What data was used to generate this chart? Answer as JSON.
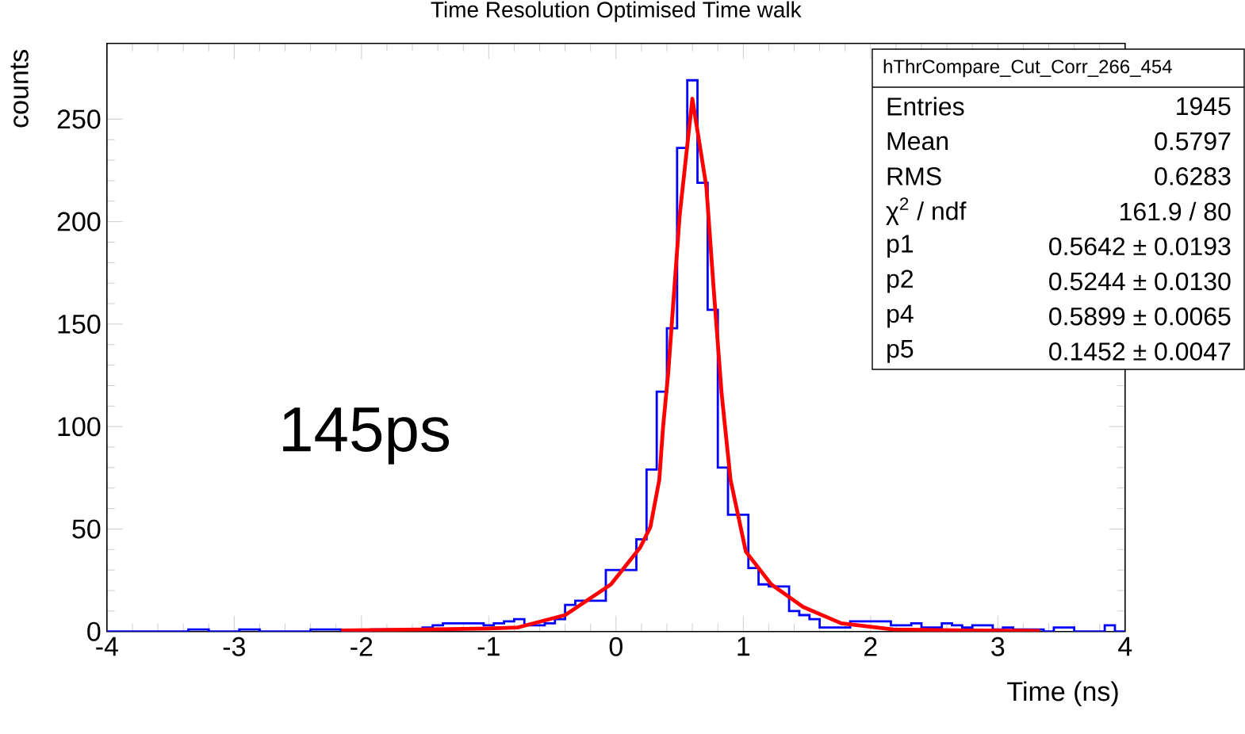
{
  "chart_data": {
    "type": "histogram",
    "title": "Time Resolution Optimised Time walk",
    "xlabel": "Time (ns)",
    "ylabel": "counts",
    "bins": [
      -4,
      -3.92,
      -3.84,
      -3.76,
      -3.68,
      -3.6,
      -3.52,
      -3.44,
      -3.36,
      -3.28,
      -3.2,
      -3.12,
      -3.04,
      -2.96,
      -2.88,
      -2.8,
      -2.72,
      -2.64,
      -2.56,
      -2.48,
      -2.4,
      -2.32,
      -2.24,
      -2.16,
      -2.08,
      -2,
      -1.92,
      -1.84,
      -1.76,
      -1.68,
      -1.6,
      -1.52,
      -1.44,
      -1.36,
      -1.28,
      -1.2,
      -1.12,
      -1.04,
      -0.96,
      -0.88,
      -0.8,
      -0.72,
      -0.64,
      -0.56,
      -0.48,
      -0.4,
      -0.32,
      -0.24,
      -0.16,
      -0.08,
      0,
      0.08,
      0.16,
      0.24,
      0.32,
      0.4,
      0.48,
      0.56,
      0.64,
      0.72,
      0.8,
      0.88,
      0.96,
      1.04,
      1.12,
      1.2,
      1.28,
      1.36,
      1.44,
      1.52,
      1.6,
      1.68,
      1.76,
      1.84,
      1.92,
      2,
      2.08,
      2.16,
      2.24,
      2.32,
      2.4,
      2.48,
      2.56,
      2.64,
      2.72,
      2.8,
      2.88,
      2.96,
      3.04,
      3.12,
      3.2,
      3.28,
      3.36,
      3.44,
      3.52,
      3.6,
      3.68,
      3.76,
      3.84,
      3.92,
      4
    ],
    "color": "#0000ff",
    "values": [
      0,
      0,
      0,
      0,
      0,
      0,
      0,
      0,
      1,
      1,
      0,
      0,
      0,
      1,
      1,
      0,
      0,
      0,
      0,
      0,
      1,
      1,
      1,
      0,
      0,
      0,
      1,
      1,
      1,
      1,
      1,
      2,
      3,
      4,
      4,
      4,
      4,
      3,
      4,
      5,
      6,
      3,
      3,
      4,
      6,
      13,
      15,
      15,
      15,
      30,
      30,
      30,
      45,
      79,
      117,
      148,
      236,
      269,
      219,
      157,
      80,
      57,
      57,
      31,
      23,
      22,
      22,
      10,
      8,
      6,
      2,
      2,
      2,
      5,
      5,
      5,
      5,
      3,
      3,
      4,
      2,
      2,
      4,
      3,
      2,
      3,
      3,
      1,
      2,
      1,
      1,
      1,
      0,
      2,
      2,
      0,
      0,
      0,
      3,
      0
    ],
    "series": [
      {
        "type": "line",
        "color": "#ff0000",
        "x": [
          -2.16,
          -1.5,
          -1.0,
          -0.77,
          -0.4,
          -0.04,
          0.19,
          0.27,
          0.34,
          0.37,
          0.41,
          0.5,
          0.6,
          0.71,
          0.77,
          0.83,
          0.9,
          1.02,
          1.22,
          1.47,
          1.77,
          2.18,
          2.8,
          3.33
        ],
        "values": [
          0.5,
          1,
          1.5,
          2,
          8,
          23,
          41,
          51,
          74,
          100,
          126,
          203,
          260,
          217,
          165,
          116,
          74,
          39,
          23,
          12,
          4,
          1,
          0.5,
          0.3
        ]
      }
    ],
    "xlim": [
      -4,
      4
    ],
    "xticks": [
      -4,
      -3,
      -2,
      -1,
      0,
      1,
      2,
      3,
      4
    ],
    "ylim": [
      0,
      287
    ],
    "yticks": [
      0,
      50,
      100,
      150,
      200,
      250
    ],
    "annotations": [
      "145ps",
      "hThrCompare_Cut_Corr_266_454",
      "Entries",
      "1945",
      "Mean",
      "0.5797",
      "RMS",
      "0.6283",
      "χ$^{2}$ / ndf",
      "161.9 / 80",
      "p1",
      "0.5642 ± 0.0193",
      "p2",
      "0.5244 ± 0.0130",
      "p4",
      "0.5899 ± 0.0065",
      "p5",
      "0.1452 ± 0.0047"
    ]
  }
}
